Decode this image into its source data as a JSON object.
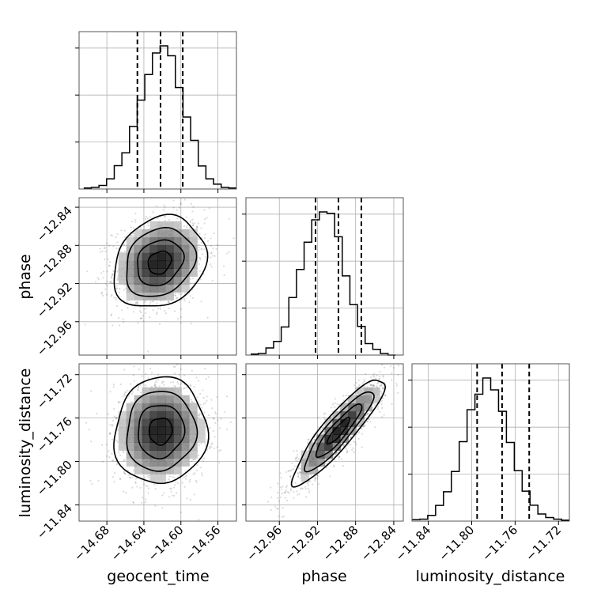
{
  "chart_data": {
    "type": "corner",
    "grid": true,
    "parameters": [
      {
        "name": "geocent_time",
        "range": [
          -14.71,
          -14.54
        ],
        "ticks": [
          "−14.68",
          "−14.64",
          "−14.60",
          "−14.56"
        ],
        "tick_values": [
          -14.68,
          -14.64,
          -14.6,
          -14.56
        ],
        "quantiles": [
          -14.647,
          -14.622,
          -14.598
        ],
        "histogram": {
          "bin_start": -14.705,
          "bin_width": 0.00825,
          "values": [
            0.007,
            0.011,
            0.025,
            0.071,
            0.163,
            0.253,
            0.437,
            0.621,
            0.8,
            0.95,
            1.0,
            0.931,
            0.709,
            0.503,
            0.34,
            0.161,
            0.071,
            0.034,
            0.011,
            0.007
          ]
        }
      },
      {
        "name": "phase",
        "range": [
          -12.995,
          -12.83
        ],
        "ticks": [
          "−12.96",
          "−12.92",
          "−12.88",
          "−12.84"
        ],
        "tick_values": [
          -12.96,
          -12.92,
          -12.88,
          -12.84
        ],
        "quantiles": [
          -12.922,
          -12.898,
          -12.874
        ],
        "histogram": {
          "bin_start": -12.99,
          "bin_width": 0.008,
          "values": [
            0.007,
            0.011,
            0.05,
            0.095,
            0.196,
            0.402,
            0.598,
            0.789,
            0.945,
            1.0,
            0.99,
            0.827,
            0.553,
            0.352,
            0.2,
            0.08,
            0.04,
            0.011,
            0.0
          ]
        }
      },
      {
        "name": "luminosity_distance",
        "range": [
          -11.855,
          -11.71
        ],
        "ticks": [
          "−11.84",
          "−11.80",
          "−11.76",
          "−11.72"
        ],
        "tick_values": [
          -11.84,
          -11.8,
          -11.76,
          -11.72
        ],
        "quantiles": [
          -11.795,
          -11.772,
          -11.747
        ],
        "histogram": {
          "bin_start": -11.855,
          "bin_width": 0.00725,
          "values": [
            0.011,
            0.014,
            0.04,
            0.11,
            0.205,
            0.347,
            0.555,
            0.778,
            0.887,
            1.0,
            0.917,
            0.767,
            0.55,
            0.353,
            0.209,
            0.111,
            0.05,
            0.025,
            0.014,
            0.007
          ]
        }
      }
    ],
    "pairs": [
      {
        "x_param": "geocent_time",
        "y_param": "phase",
        "center": [
          -14.623,
          -12.898
        ],
        "sd": [
          0.025,
          0.024
        ],
        "correlation": 0.2,
        "contour_levels_sigma": [
          0.5,
          1.0,
          1.5,
          2.0
        ]
      },
      {
        "x_param": "geocent_time",
        "y_param": "luminosity_distance",
        "center": [
          -14.622,
          -11.772
        ],
        "sd": [
          0.025,
          0.0245
        ],
        "correlation": 0.05,
        "contour_levels_sigma": [
          0.5,
          1.0,
          1.5,
          2.0
        ]
      },
      {
        "x_param": "phase",
        "y_param": "luminosity_distance",
        "center": [
          -12.898,
          -11.772
        ],
        "sd": [
          0.024,
          0.0245
        ],
        "correlation": 0.9,
        "contour_levels_sigma": [
          0.5,
          1.0,
          1.5,
          2.0
        ]
      }
    ]
  }
}
